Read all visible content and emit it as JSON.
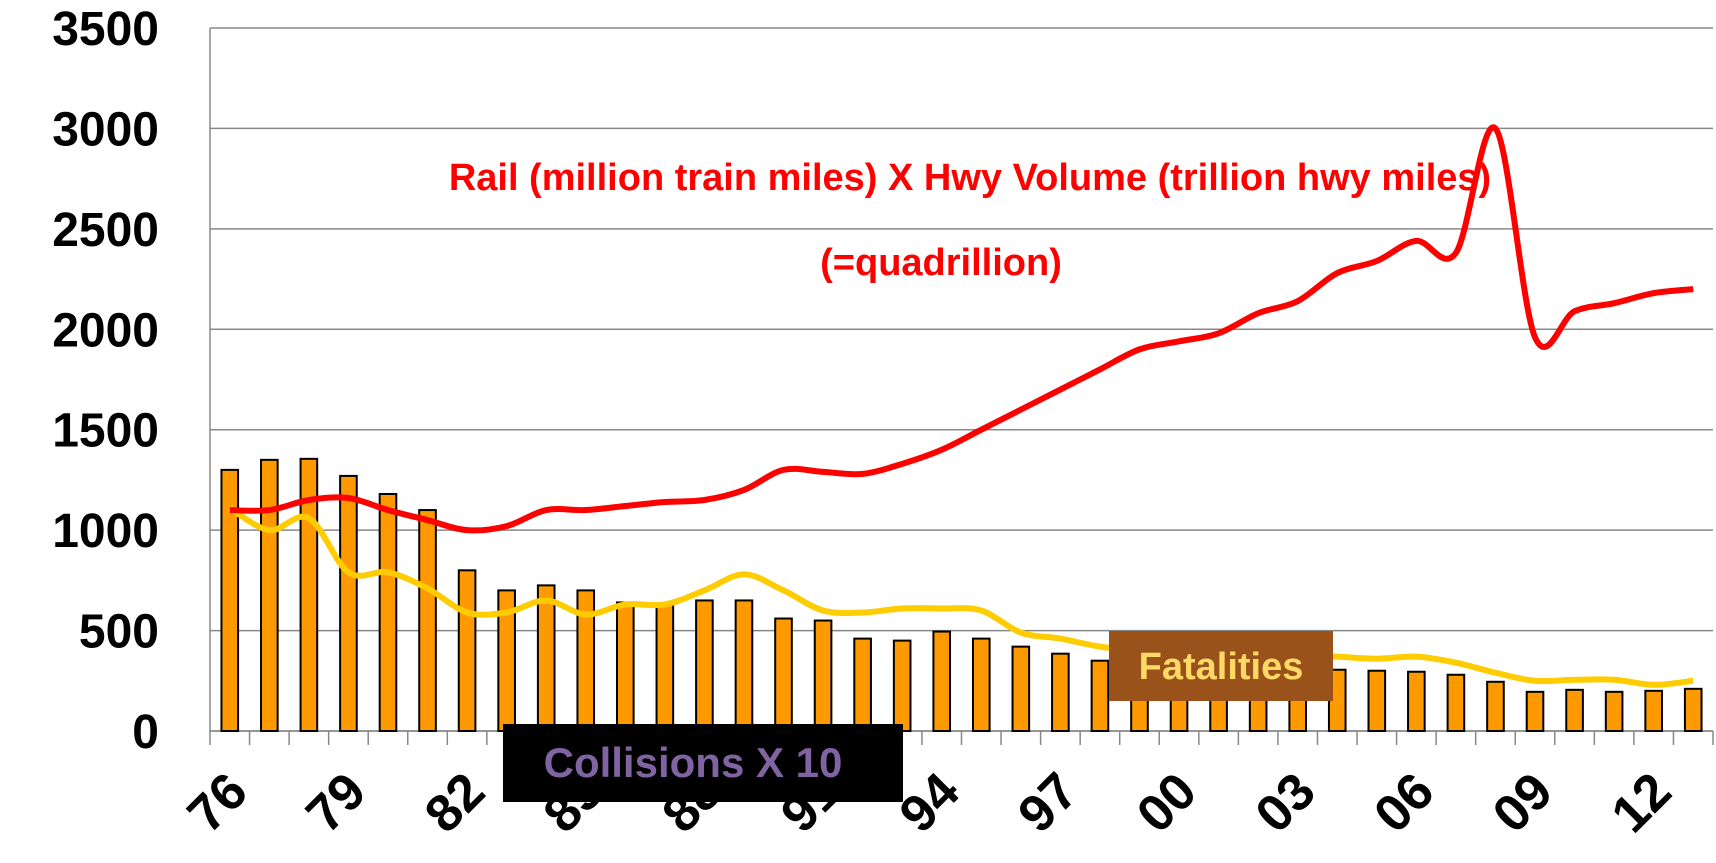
{
  "chart_data": {
    "type": "bar",
    "categories": [
      "76",
      null,
      null,
      "79",
      null,
      null,
      "82",
      null,
      null,
      "85",
      null,
      null,
      "88",
      null,
      null,
      "91",
      null,
      null,
      "94",
      null,
      null,
      "97",
      null,
      null,
      "00",
      null,
      null,
      "03",
      null,
      null,
      "06",
      null,
      null,
      "09",
      null,
      null,
      "12",
      null
    ],
    "series": [
      {
        "name": "Collisions X 10",
        "type": "bar",
        "color": "#ff9900",
        "values": [
          1300,
          1350,
          1355,
          1270,
          1180,
          1100,
          800,
          700,
          725,
          700,
          640,
          630,
          650,
          650,
          560,
          550,
          460,
          450,
          495,
          460,
          420,
          385,
          350,
          330,
          320,
          320,
          320,
          310,
          305,
          300,
          295,
          280,
          245,
          195,
          205,
          195,
          200,
          210
        ]
      },
      {
        "name": "Fatalities",
        "type": "line",
        "color": "#ffcc00",
        "values": [
          1110,
          1000,
          1060,
          790,
          790,
          710,
          590,
          590,
          650,
          580,
          630,
          630,
          700,
          780,
          700,
          600,
          590,
          610,
          610,
          600,
          490,
          460,
          420,
          400,
          390,
          390,
          380,
          380,
          370,
          360,
          370,
          340,
          290,
          250,
          255,
          255,
          230,
          250
        ]
      },
      {
        "name": "Rail (million train miles) X Hwy Volume (trillion hwy miles)",
        "type": "line",
        "color": "#ff0000",
        "values": [
          1100,
          1100,
          1150,
          1160,
          1100,
          1050,
          1000,
          1020,
          1100,
          1100,
          1120,
          1140,
          1150,
          1200,
          1300,
          1290,
          1280,
          1330,
          1400,
          1500,
          1600,
          1700,
          1800,
          1900,
          1940,
          1980,
          2080,
          2140,
          2280,
          2340,
          2440,
          2380,
          3000,
          1960,
          2090,
          2130,
          2180,
          2200
        ]
      }
    ],
    "annotations": [
      "(=quadrillion)"
    ],
    "ylim": [
      0,
      3500
    ],
    "yticks": [
      0,
      500,
      1000,
      1500,
      2000,
      2500,
      3000,
      3500
    ],
    "grid": true
  }
}
